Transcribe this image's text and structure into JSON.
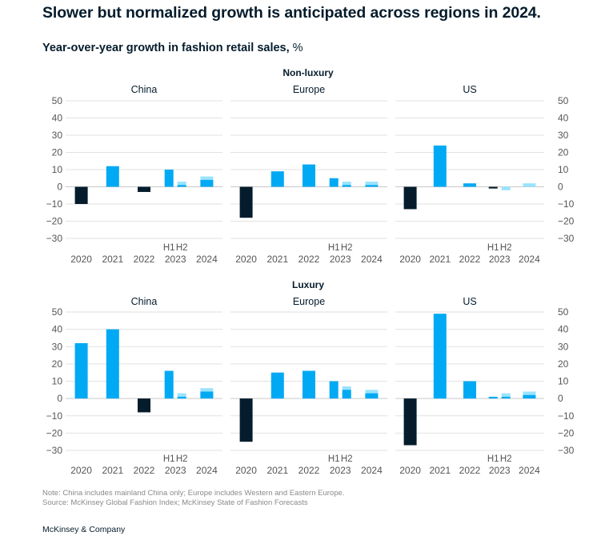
{
  "title": "Slower but normalized growth is anticipated across regions in 2024.",
  "subtitle": {
    "main": "Year-over-year growth in fashion retail sales,",
    "unit": " %"
  },
  "notes": {
    "note": "Note: China includes mainland China only; Europe includes Western and Eastern Europe.",
    "source": "Source: McKinsey Global Fashion Index; McKinsey State of Fashion Forecasts"
  },
  "brand": "McKinsey & Company",
  "colors": {
    "negative": "#051c2c",
    "positive": "#00a9f4",
    "forecast": "#99e3fd",
    "grid": "#e2e2e2",
    "text": "#051c2c",
    "axis": "#555555"
  },
  "chart_data": {
    "type": "bar",
    "y_ticks": [
      50,
      40,
      30,
      20,
      10,
      0,
      -10,
      -20,
      -30
    ],
    "ylim": [
      -30,
      50
    ],
    "categories": [
      "2020",
      "2021",
      "2022",
      "2023",
      "2024"
    ],
    "half_labels": [
      "H1",
      "H2"
    ],
    "legend": "none",
    "groups": [
      {
        "name": "Non-luxury",
        "panels": [
          {
            "region": "China",
            "values": {
              "2020": -10,
              "2021": 12,
              "2022": -3,
              "2023_H1": 10,
              "2023_H2": 1,
              "2023_H2_forecast": 3,
              "2024": 4,
              "2024_forecast": 6
            }
          },
          {
            "region": "Europe",
            "values": {
              "2020": -18,
              "2021": 9,
              "2022": 13,
              "2023_H1": 5,
              "2023_H2": 1,
              "2023_H2_forecast": 3,
              "2024": 1,
              "2024_forecast": 3
            }
          },
          {
            "region": "US",
            "values": {
              "2020": -13,
              "2021": 24,
              "2022": 2,
              "2023_H1": -1,
              "2023_H2": 0,
              "2023_H2_forecast": -2,
              "2024": 0,
              "2024_forecast": 2
            }
          }
        ]
      },
      {
        "name": "Luxury",
        "panels": [
          {
            "region": "China",
            "values": {
              "2020": 32,
              "2021": 40,
              "2022": -8,
              "2023_H1": 16,
              "2023_H2": 1,
              "2023_H2_forecast": 3,
              "2024": 4,
              "2024_forecast": 6
            }
          },
          {
            "region": "Europe",
            "values": {
              "2020": -25,
              "2021": 15,
              "2022": 16,
              "2023_H1": 10,
              "2023_H2": 5,
              "2023_H2_forecast": 7,
              "2024": 3,
              "2024_forecast": 5
            }
          },
          {
            "region": "US",
            "values": {
              "2020": -27,
              "2021": 49,
              "2022": 10,
              "2023_H1": 1,
              "2023_H2": 1,
              "2023_H2_forecast": 3,
              "2024": 2,
              "2024_forecast": 4
            }
          }
        ]
      }
    ]
  }
}
